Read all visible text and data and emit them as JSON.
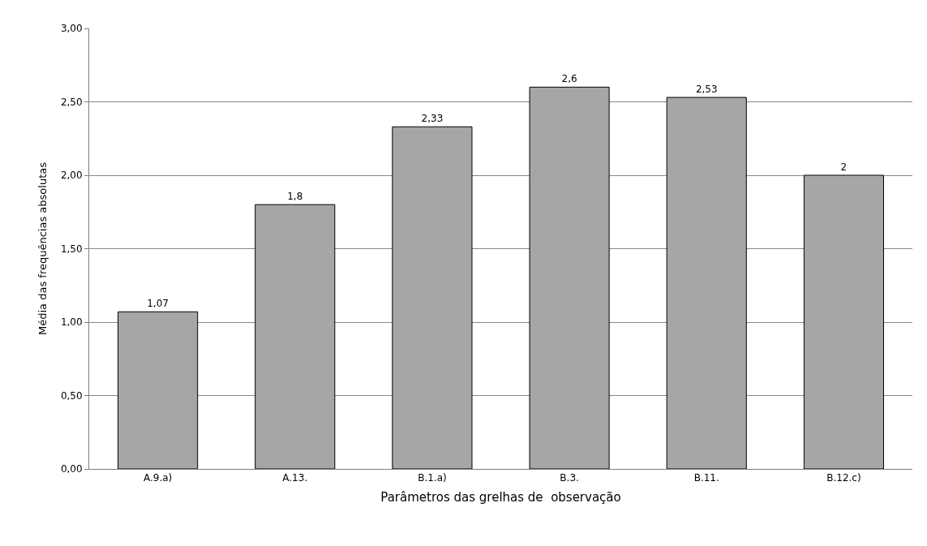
{
  "chart_data": {
    "type": "bar",
    "xlabel": "Parâmetros das grelhas de  observação",
    "ylabel": "Média das frequências absolutas",
    "categories": [
      "A.9.a)",
      "A.13.",
      "B.1.a)",
      "B.3.",
      "B.11.",
      "B.12.c)"
    ],
    "values": [
      1.07,
      1.8,
      2.33,
      2.6,
      2.53,
      2
    ],
    "value_labels": [
      "1,07",
      "1,8",
      "2,33",
      "2,6",
      "2,53",
      "2"
    ],
    "color": "#a6a6a6",
    "ylim": [
      0,
      3
    ],
    "yticks": [
      {
        "value": 0,
        "label": "0,00"
      },
      {
        "value": 0.5,
        "label": "0,50"
      },
      {
        "value": 1,
        "label": "1,00"
      },
      {
        "value": 1.5,
        "label": "1,50"
      },
      {
        "value": 2,
        "label": "2,00"
      },
      {
        "value": 2.5,
        "label": "2,50"
      },
      {
        "value": 3,
        "label": "3,00"
      }
    ],
    "grid": "y",
    "legend": false
  }
}
